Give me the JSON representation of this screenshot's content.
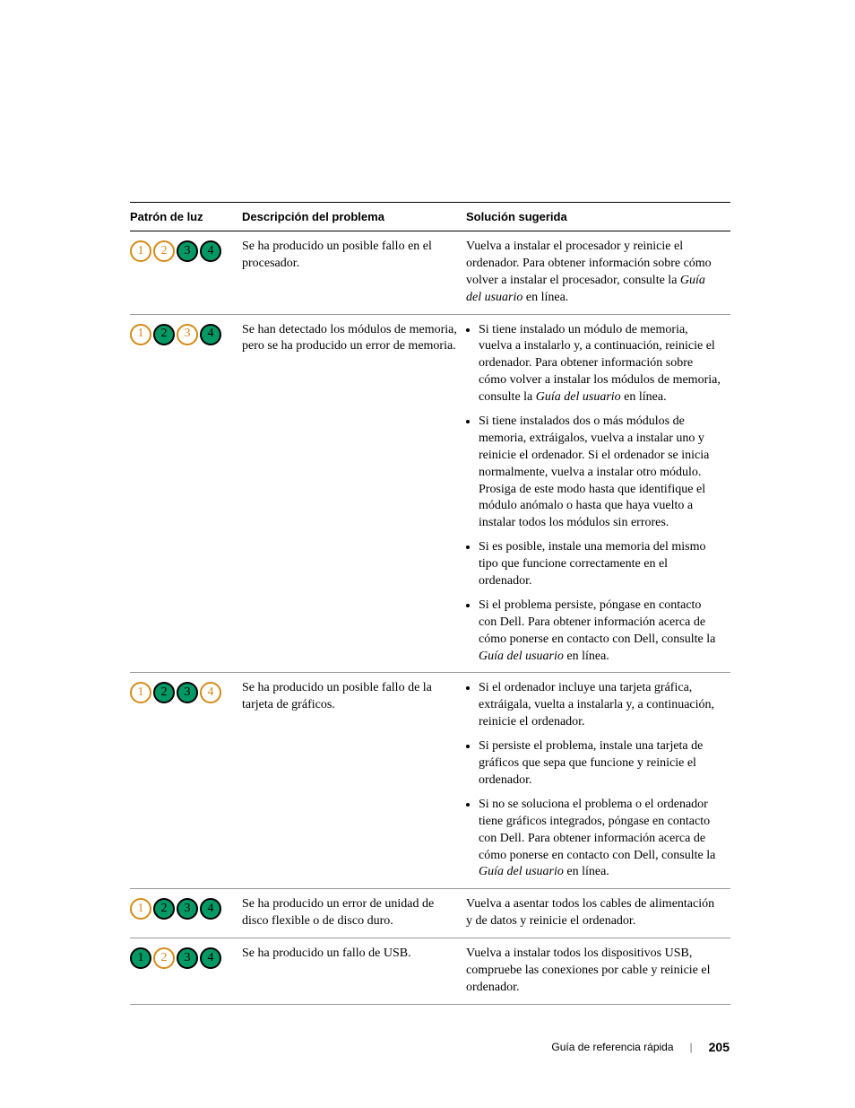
{
  "colors": {
    "led_on_fill": "#009966",
    "led_on_border": "#000000",
    "led_on_text": "#000000",
    "led_off_fill": "#ffffff",
    "led_off_border": "#d38b1a",
    "led_off_text": "#d38b1a"
  },
  "table": {
    "headers": {
      "col1": "Patrón de luz",
      "col2": "Descripción del problema",
      "col3": "Solución sugerida"
    },
    "rows": [
      {
        "leds": [
          false,
          false,
          true,
          true
        ],
        "problem": "Se ha producido un posible fallo en el procesador.",
        "solution": {
          "type": "plain",
          "html": "Vuelva a instalar el procesador y reinicie el ordenador. Para obtener información sobre cómo volver a instalar el procesador, consulte la <em class='it'>Guía del usuario</em> en línea."
        }
      },
      {
        "leds": [
          false,
          true,
          false,
          true
        ],
        "problem": "Se han detectado los módulos de memoria, pero se ha producido un error de memoria.",
        "solution": {
          "type": "list",
          "items": [
            "Si tiene instalado un módulo de memoria, vuelva a instalarlo y, a continuación, reinicie el ordenador. Para obtener información sobre cómo volver a instalar los módulos de memoria, consulte la <em class='it'>Guía del usuario</em> en línea.",
            "Si tiene instalados dos o más módulos de memoria, extráigalos, vuelva a instalar uno y reinicie el ordenador. Si el ordenador se inicia normalmente, vuelva a instalar otro módulo. Prosiga de este modo hasta que identifique el módulo anómalo o hasta que haya vuelto a instalar todos los módulos sin errores.",
            "Si es posible, instale una memoria del mismo tipo que funcione correctamente en el ordenador.",
            "Si el problema persiste, póngase en contacto con Dell. Para obtener información acerca de cómo ponerse en contacto con Dell, consulte la <em class='it'>Guía del usuario</em> en línea."
          ]
        }
      },
      {
        "leds": [
          false,
          true,
          true,
          false
        ],
        "problem": "Se ha producido un posible fallo de la tarjeta de gráficos.",
        "solution": {
          "type": "list",
          "items": [
            "Si el ordenador incluye una tarjeta gráfica, extráigala, vuelta a instalarla y, a continuación, reinicie el ordenador.",
            "Si persiste el problema, instale una tarjeta de gráficos que sepa que funcione y reinicie el ordenador.",
            "Si no se soluciona el problema o el ordenador tiene gráficos integrados, póngase en contacto con Dell. Para obtener información acerca de cómo ponerse en contacto con Dell, consulte la <em class='it'>Guía del usuario</em> en línea."
          ]
        }
      },
      {
        "leds": [
          false,
          true,
          true,
          true
        ],
        "problem": "Se ha producido un error de unidad de disco flexible o de disco duro.",
        "solution": {
          "type": "plain",
          "html": "Vuelva a asentar todos los cables de alimentación y de datos y reinicie el ordenador."
        }
      },
      {
        "leds": [
          true,
          false,
          true,
          true
        ],
        "problem": "Se ha producido un fallo de USB.",
        "solution": {
          "type": "plain",
          "html": "Vuelva a instalar todos los dispositivos USB, compruebe las conexiones por cable y reinicie el ordenador."
        }
      }
    ]
  },
  "footer": {
    "title": "Guía de referencia rápida",
    "page": "205"
  }
}
